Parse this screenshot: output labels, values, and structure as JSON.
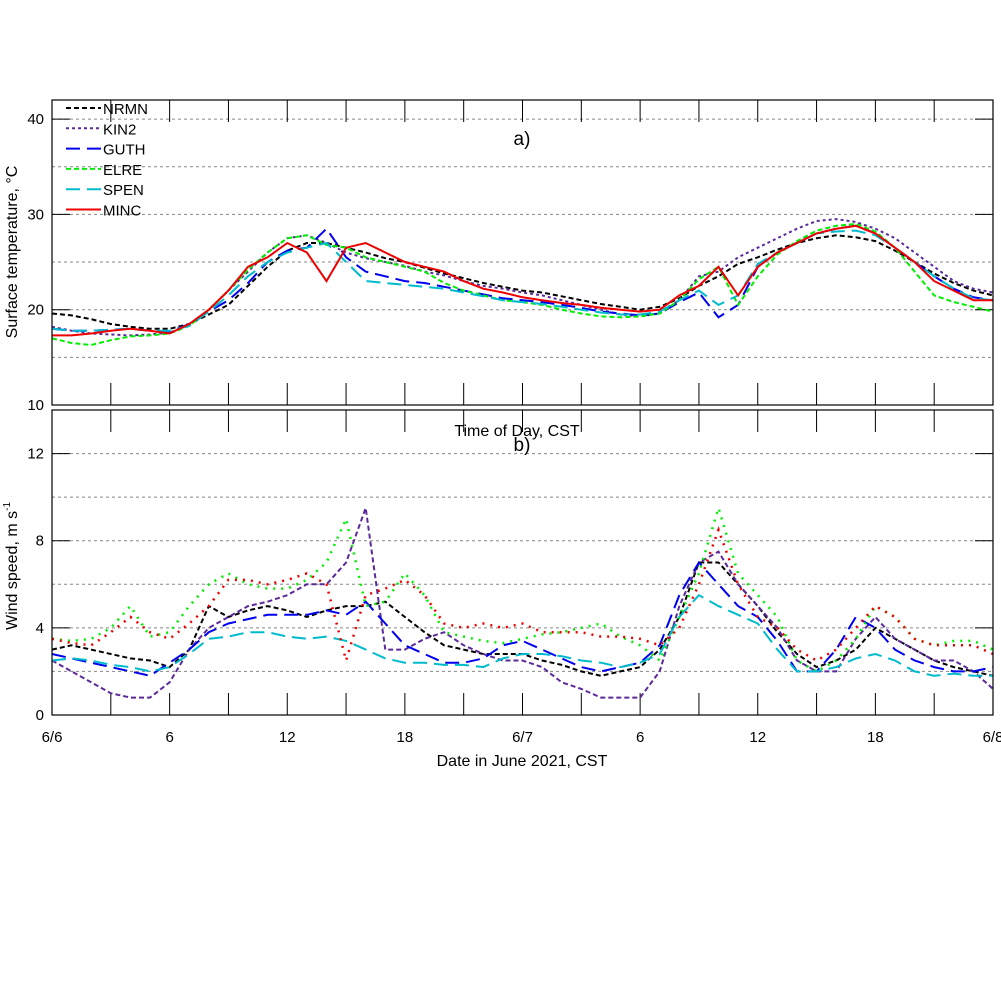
{
  "chart_data": [
    {
      "type": "line",
      "panel_label": "a)",
      "ylabel": "Surface temperature, °C",
      "xlabel": "",
      "ylim": [
        10,
        42
      ],
      "yticks": [
        10,
        20,
        30,
        40
      ],
      "ygrid": [
        15,
        20,
        25,
        30,
        35,
        40
      ],
      "x_hours_range": [
        0,
        48
      ],
      "x_unit": "hours since 6/6 00 CST",
      "legend": {
        "placement": "top-left",
        "entries": [
          "NRMN",
          "KIN2",
          "GUTH",
          "ELRE",
          "SPEN",
          "MINC"
        ]
      },
      "x": [
        0,
        1,
        2,
        3,
        4,
        5,
        6,
        7,
        8,
        9,
        10,
        11,
        12,
        13,
        14,
        15,
        16,
        17,
        18,
        19,
        20,
        21,
        22,
        23,
        24,
        25,
        26,
        27,
        28,
        29,
        30,
        31,
        32,
        33,
        34,
        35,
        36,
        37,
        38,
        39,
        40,
        41,
        42,
        43,
        44,
        45,
        46,
        47,
        48
      ],
      "series": [
        {
          "name": "NRMN",
          "color": "#000000",
          "style": "dash",
          "values": [
            19.6,
            19.4,
            19.0,
            18.5,
            18.2,
            18.0,
            18.0,
            18.5,
            19.5,
            20.5,
            22.5,
            24.5,
            26.2,
            27.0,
            27.0,
            26.5,
            26.0,
            25.4,
            25.0,
            24.4,
            23.8,
            23.3,
            22.8,
            22.4,
            22.0,
            21.8,
            21.4,
            21.0,
            20.6,
            20.3,
            20.0,
            20.3,
            21.2,
            22.5,
            23.5,
            24.8,
            25.5,
            26.3,
            27.0,
            27.5,
            27.8,
            27.6,
            27.2,
            26.2,
            25.0,
            23.8,
            22.8,
            22.0,
            21.5
          ]
        },
        {
          "name": "KIN2",
          "color": "#5a2a9a",
          "style": "dot",
          "values": [
            18.2,
            17.8,
            17.5,
            17.4,
            17.3,
            17.4,
            17.6,
            18.4,
            20.0,
            22.0,
            24.0,
            26.0,
            27.5,
            27.8,
            27.0,
            26.0,
            25.4,
            25.0,
            24.6,
            24.0,
            23.6,
            23.0,
            22.5,
            22.2,
            21.8,
            21.5,
            21.0,
            20.5,
            20.0,
            19.5,
            19.3,
            19.6,
            21.0,
            23.5,
            24.0,
            25.5,
            26.5,
            27.5,
            28.5,
            29.3,
            29.5,
            29.2,
            28.5,
            27.5,
            26.0,
            24.5,
            23.0,
            22.2,
            21.8
          ]
        },
        {
          "name": "GUTH",
          "color": "#0000ee",
          "style": "longdash",
          "values": [
            18.0,
            17.8,
            17.8,
            17.9,
            18.0,
            17.8,
            17.7,
            18.5,
            19.8,
            21.0,
            22.8,
            25.0,
            26.2,
            26.5,
            28.5,
            25.5,
            24.0,
            23.5,
            23.0,
            22.8,
            22.4,
            22.0,
            21.6,
            21.2,
            21.0,
            20.8,
            20.5,
            20.2,
            19.8,
            19.6,
            19.4,
            19.6,
            20.8,
            21.8,
            19.2,
            20.5,
            24.5,
            26.0,
            27.0,
            28.0,
            28.5,
            28.8,
            28.0,
            26.5,
            25.0,
            23.5,
            22.2,
            21.3,
            21.0
          ]
        },
        {
          "name": "ELRE",
          "color": "#00ee00",
          "style": "dash",
          "values": [
            17.0,
            16.5,
            16.3,
            16.8,
            17.2,
            17.3,
            17.5,
            18.3,
            20.0,
            22.0,
            24.2,
            26.0,
            27.5,
            27.8,
            26.8,
            26.5,
            25.5,
            25.0,
            24.5,
            24.0,
            22.8,
            22.0,
            21.5,
            21.0,
            20.8,
            20.5,
            20.0,
            19.6,
            19.3,
            19.2,
            19.3,
            19.6,
            21.0,
            23.2,
            24.5,
            20.5,
            23.5,
            25.8,
            27.2,
            28.3,
            28.8,
            29.0,
            28.2,
            26.5,
            24.0,
            21.5,
            20.8,
            20.3,
            19.8
          ]
        },
        {
          "name": "SPEN",
          "color": "#00bbcc",
          "style": "longdash",
          "values": [
            18.0,
            17.8,
            17.8,
            17.9,
            18.0,
            17.8,
            17.8,
            18.3,
            19.8,
            21.5,
            23.5,
            25.0,
            26.0,
            26.5,
            27.0,
            25.0,
            23.0,
            22.8,
            22.6,
            22.4,
            22.2,
            21.8,
            21.4,
            21.0,
            20.8,
            20.6,
            20.3,
            20.0,
            19.7,
            19.5,
            19.5,
            19.8,
            21.0,
            22.0,
            20.5,
            21.5,
            24.8,
            26.0,
            27.0,
            28.0,
            28.2,
            28.3,
            27.8,
            26.5,
            25.0,
            23.5,
            22.2,
            21.2,
            21.0
          ]
        },
        {
          "name": "MINC",
          "color": "#ee0000",
          "style": "solid",
          "values": [
            17.3,
            17.3,
            17.5,
            17.8,
            18.0,
            17.8,
            17.5,
            18.5,
            20.0,
            22.0,
            24.5,
            25.5,
            27.0,
            26.0,
            23.0,
            26.5,
            27.0,
            26.0,
            25.0,
            24.5,
            24.0,
            23.0,
            22.2,
            21.8,
            21.3,
            21.0,
            20.7,
            20.5,
            20.2,
            20.0,
            19.8,
            20.0,
            21.5,
            22.5,
            24.5,
            21.5,
            24.5,
            26.0,
            27.0,
            28.0,
            28.5,
            28.8,
            28.0,
            26.5,
            25.0,
            23.0,
            22.0,
            21.0,
            21.0
          ]
        }
      ]
    },
    {
      "type": "line",
      "panel_label": "b)",
      "top_label": "Time of Day, CST",
      "ylabel_main": "Wind speed, m s",
      "ylabel_sup": "-1",
      "xlabel": "Date in June 2021, CST",
      "ylim": [
        0,
        14
      ],
      "yticks": [
        0,
        4,
        8,
        12
      ],
      "ygrid": [
        2,
        4,
        6,
        8,
        10,
        12
      ],
      "x_hours_range": [
        0,
        48
      ],
      "xtick_labels": [
        {
          "hour": 0,
          "label": "6/6"
        },
        {
          "hour": 6,
          "label": "6"
        },
        {
          "hour": 12,
          "label": "12"
        },
        {
          "hour": 18,
          "label": "18"
        },
        {
          "hour": 24,
          "label": "6/7"
        },
        {
          "hour": 30,
          "label": "6"
        },
        {
          "hour": 36,
          "label": "12"
        },
        {
          "hour": 42,
          "label": "18"
        },
        {
          "hour": 48,
          "label": "6/8"
        }
      ],
      "x": [
        0,
        1,
        2,
        3,
        4,
        5,
        6,
        7,
        8,
        9,
        10,
        11,
        12,
        13,
        14,
        15,
        16,
        17,
        18,
        19,
        20,
        21,
        22,
        23,
        24,
        25,
        26,
        27,
        28,
        29,
        30,
        31,
        32,
        33,
        34,
        35,
        36,
        37,
        38,
        39,
        40,
        41,
        42,
        43,
        44,
        45,
        46,
        47,
        48
      ],
      "series": [
        {
          "name": "NRMN",
          "color": "#000000",
          "style": "dash",
          "values": [
            3.0,
            3.2,
            3.0,
            2.8,
            2.6,
            2.5,
            2.2,
            3.0,
            5.0,
            4.5,
            4.8,
            5.0,
            4.8,
            4.5,
            4.8,
            5.0,
            5.0,
            5.2,
            4.5,
            3.8,
            3.2,
            3.0,
            2.8,
            2.8,
            2.8,
            2.5,
            2.3,
            2.0,
            1.8,
            2.0,
            2.2,
            3.0,
            4.5,
            7.0,
            7.0,
            6.0,
            5.0,
            3.8,
            2.8,
            2.2,
            2.5,
            3.0,
            4.0,
            3.5,
            3.0,
            2.5,
            2.2,
            2.0,
            1.8
          ]
        },
        {
          "name": "KIN2",
          "color": "#5a2a9a",
          "style": "dash",
          "values": [
            2.5,
            2.0,
            1.5,
            1.0,
            0.8,
            0.8,
            1.5,
            3.0,
            4.0,
            4.5,
            5.0,
            5.2,
            5.5,
            6.0,
            6.0,
            7.0,
            9.5,
            3.0,
            3.0,
            3.5,
            3.8,
            3.2,
            2.8,
            2.5,
            2.5,
            2.2,
            1.5,
            1.2,
            0.8,
            0.8,
            0.8,
            2.0,
            5.0,
            7.0,
            7.5,
            6.0,
            5.0,
            4.0,
            2.5,
            2.0,
            2.0,
            3.5,
            4.5,
            3.5,
            3.0,
            2.5,
            2.5,
            2.0,
            1.2
          ]
        },
        {
          "name": "GUTH",
          "color": "#0000ee",
          "style": "longdash",
          "values": [
            2.8,
            2.6,
            2.4,
            2.2,
            2.0,
            1.8,
            2.4,
            3.0,
            3.8,
            4.2,
            4.4,
            4.6,
            4.6,
            4.6,
            4.8,
            4.6,
            5.2,
            4.2,
            3.2,
            2.8,
            2.4,
            2.4,
            2.6,
            3.2,
            3.4,
            3.0,
            2.6,
            2.2,
            2.0,
            2.2,
            2.4,
            3.2,
            5.5,
            7.0,
            6.0,
            5.0,
            4.5,
            3.4,
            2.0,
            2.0,
            3.0,
            4.5,
            4.0,
            3.0,
            2.5,
            2.2,
            2.0,
            2.0,
            2.2
          ]
        },
        {
          "name": "ELRE",
          "color": "#00ee00",
          "style": "dots",
          "values": [
            3.5,
            3.4,
            3.5,
            4.0,
            5.0,
            3.6,
            3.8,
            5.0,
            6.0,
            6.5,
            6.0,
            5.8,
            5.8,
            6.2,
            7.0,
            9.0,
            5.0,
            5.2,
            6.5,
            5.5,
            3.8,
            3.6,
            3.4,
            3.3,
            3.5,
            3.7,
            3.8,
            4.0,
            4.2,
            3.6,
            3.2,
            2.5,
            4.5,
            6.5,
            9.5,
            6.5,
            5.5,
            4.5,
            2.5,
            2.0,
            2.5,
            3.5,
            5.0,
            4.5,
            3.5,
            3.2,
            3.4,
            3.4,
            3.0
          ]
        },
        {
          "name": "SPEN",
          "color": "#00bbcc",
          "style": "longdash",
          "values": [
            2.5,
            2.6,
            2.5,
            2.3,
            2.2,
            2.0,
            2.2,
            2.8,
            3.5,
            3.6,
            3.8,
            3.8,
            3.6,
            3.5,
            3.6,
            3.4,
            3.0,
            2.6,
            2.4,
            2.4,
            2.3,
            2.3,
            2.2,
            2.6,
            2.8,
            2.8,
            2.7,
            2.5,
            2.4,
            2.2,
            2.4,
            2.8,
            4.5,
            5.5,
            5.0,
            4.6,
            4.2,
            3.0,
            2.0,
            2.0,
            2.2,
            2.6,
            2.8,
            2.5,
            2.0,
            1.8,
            1.9,
            1.8,
            1.8
          ]
        },
        {
          "name": "MINC",
          "color": "#ee0000",
          "style": "dots",
          "values": [
            3.5,
            3.3,
            3.2,
            3.8,
            4.5,
            3.8,
            3.5,
            4.2,
            5.0,
            6.2,
            6.2,
            6.0,
            6.2,
            6.5,
            6.0,
            2.5,
            5.5,
            5.8,
            6.2,
            5.5,
            4.2,
            4.0,
            4.2,
            4.0,
            4.2,
            3.8,
            3.8,
            3.8,
            3.6,
            3.6,
            3.5,
            3.2,
            4.0,
            6.0,
            8.5,
            6.0,
            4.5,
            4.0,
            3.0,
            2.5,
            3.0,
            4.0,
            5.0,
            4.5,
            3.5,
            3.2,
            3.2,
            3.2,
            2.8
          ]
        }
      ]
    }
  ]
}
